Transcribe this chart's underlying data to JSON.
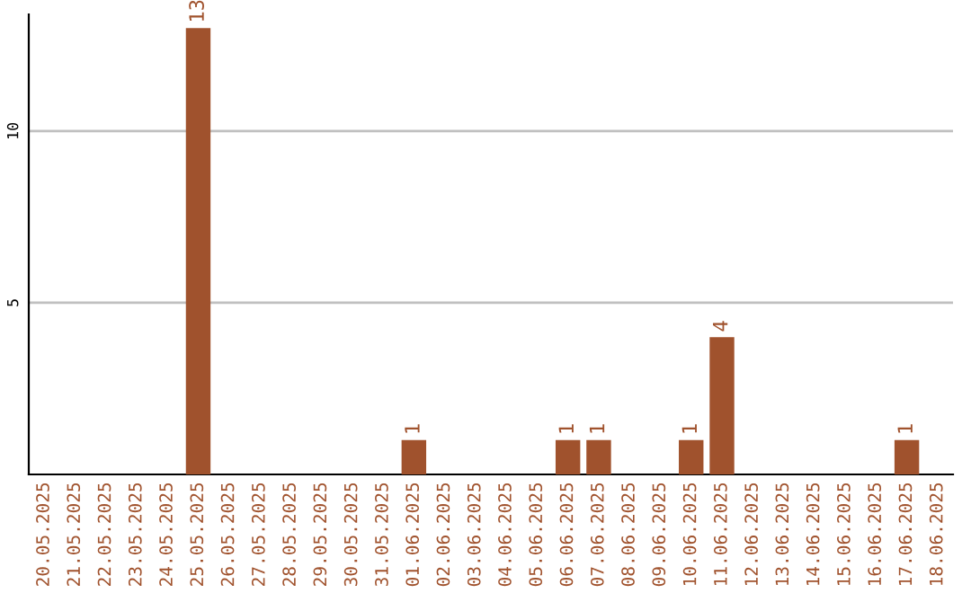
{
  "chart_data": {
    "type": "bar",
    "categories": [
      "20.05.2025",
      "21.05.2025",
      "22.05.2025",
      "23.05.2025",
      "24.05.2025",
      "25.05.2025",
      "26.05.2025",
      "27.05.2025",
      "28.05.2025",
      "29.05.2025",
      "30.05.2025",
      "31.05.2025",
      "01.06.2025",
      "02.06.2025",
      "03.06.2025",
      "04.06.2025",
      "05.06.2025",
      "06.06.2025",
      "07.06.2025",
      "08.06.2025",
      "09.06.2025",
      "10.06.2025",
      "11.06.2025",
      "12.06.2025",
      "13.06.2025",
      "14.06.2025",
      "15.06.2025",
      "16.06.2025",
      "17.06.2025",
      "18.06.2025"
    ],
    "values": [
      0,
      0,
      0,
      0,
      0,
      13,
      0,
      0,
      0,
      0,
      0,
      0,
      1,
      0,
      0,
      0,
      0,
      1,
      1,
      0,
      0,
      1,
      4,
      0,
      0,
      0,
      0,
      0,
      1,
      0
    ],
    "value_labels": [
      null,
      null,
      null,
      null,
      null,
      "13",
      null,
      null,
      null,
      null,
      null,
      null,
      "1",
      null,
      null,
      null,
      null,
      "1",
      "1",
      null,
      null,
      "1",
      "4",
      null,
      null,
      null,
      null,
      null,
      "1",
      null
    ],
    "color": "#a0522d",
    "ylim": [
      0,
      13.4
    ],
    "yticks": [
      5,
      10
    ],
    "grid": "y"
  }
}
